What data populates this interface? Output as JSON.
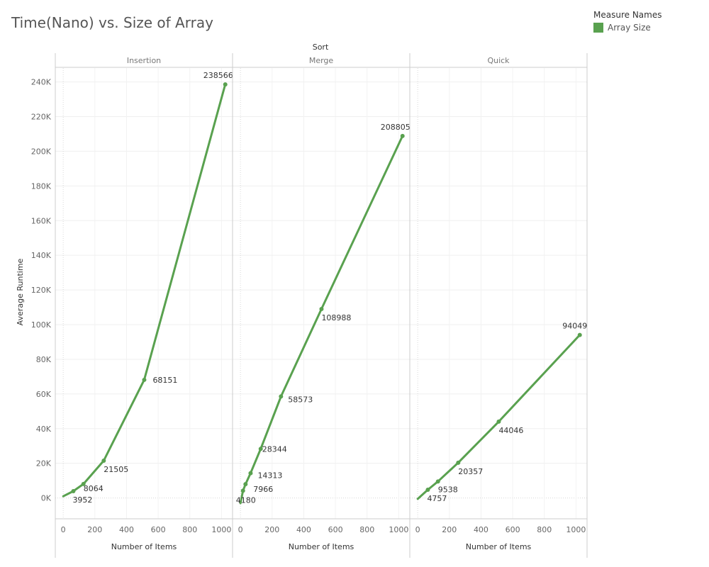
{
  "title": "Time(Nano) vs. Size of Array",
  "legend": {
    "title": "Measure Names",
    "items": [
      {
        "label": "Array Size",
        "color": "#59a14f"
      }
    ]
  },
  "column_header": "Sort",
  "chart_data": {
    "type": "line",
    "title": "Time(Nano) vs. Size of Array",
    "ylabel": "Average Runtime",
    "xlabel": "Number of Items",
    "ylim": [
      -12000,
      248000
    ],
    "xlim": [
      -50,
      1070
    ],
    "y_ticks": [
      0,
      20000,
      40000,
      60000,
      80000,
      100000,
      120000,
      140000,
      160000,
      180000,
      200000,
      220000,
      240000
    ],
    "y_tick_labels": [
      "0K",
      "20K",
      "40K",
      "60K",
      "80K",
      "100K",
      "120K",
      "140K",
      "160K",
      "180K",
      "200K",
      "220K",
      "240K"
    ],
    "x_ticks": [
      0,
      200,
      400,
      600,
      800,
      1000
    ],
    "x_tick_labels": [
      "0",
      "200",
      "400",
      "600",
      "800",
      "1000"
    ],
    "grid": true,
    "color": "#59a14f",
    "panels": [
      {
        "name": "Insertion",
        "x": [
          0,
          64,
          128,
          256,
          512,
          1024
        ],
        "y": [
          1000,
          3952,
          8064,
          21505,
          68151,
          238566
        ],
        "labels": [
          "",
          "3952",
          "8064",
          "21505",
          "68151",
          "238566"
        ]
      },
      {
        "name": "Merge",
        "x": [
          0,
          16,
          32,
          64,
          128,
          256,
          512,
          1024
        ],
        "y": [
          -3000,
          4180,
          7966,
          14313,
          28344,
          58573,
          108988,
          208805
        ],
        "labels": [
          "",
          "4180",
          "7966",
          "14313",
          "28344",
          "58573",
          "108988",
          "208805"
        ]
      },
      {
        "name": "Quick",
        "x": [
          0,
          64,
          128,
          256,
          512,
          1024
        ],
        "y": [
          -500,
          4757,
          9538,
          20357,
          44046,
          94049
        ],
        "labels": [
          "",
          "4757",
          "9538",
          "20357",
          "44046",
          "94049"
        ]
      }
    ]
  }
}
